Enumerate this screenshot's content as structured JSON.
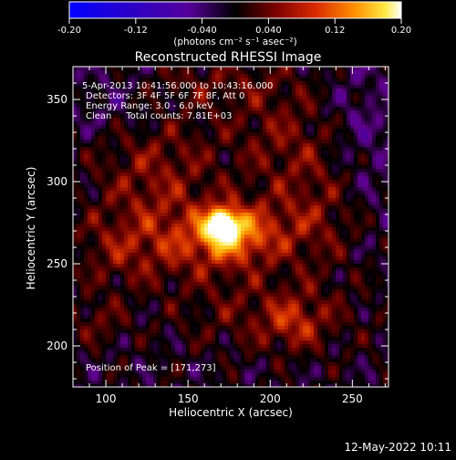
{
  "colorbar": {
    "ticks": [
      "-0.20",
      "-0.12",
      "-0.040",
      "0.040",
      "0.12",
      "0.20"
    ],
    "units": "(photons cm⁻² s⁻¹ asec⁻²)",
    "vmin": -0.2,
    "vmax": 0.2
  },
  "footer": {
    "date": "12-May-2022 10:11"
  },
  "chart_data": {
    "type": "heatmap",
    "title": "Reconstructed RHESSI Image",
    "xlabel": "Heliocentric X (arcsec)",
    "ylabel": "Heliocentric Y (arcsec)",
    "xlim": [
      80,
      272
    ],
    "ylim": [
      175,
      370
    ],
    "x_ticks": [
      100,
      150,
      200,
      250
    ],
    "y_ticks": [
      200,
      250,
      300,
      350
    ],
    "annotations": [
      "5-Apr-2013 10:41:56.000 to 10:43:16.000",
      "Detectors: 3F 4F 5F 6F 7F 8F, Att 0",
      "Energy Range: 3.0 - 6.0 keV",
      "Clean     Total counts: 7.81E+03"
    ],
    "peak_label": "Position of Peak = [171,273]",
    "peak": [
      171,
      273
    ],
    "peak_value": 0.2,
    "colormap": [
      "#0000ff",
      "#3a00b0",
      "#60008a",
      "#000000",
      "#6a0000",
      "#d63000",
      "#ff9800",
      "#ffea40",
      "#ffffff"
    ]
  }
}
